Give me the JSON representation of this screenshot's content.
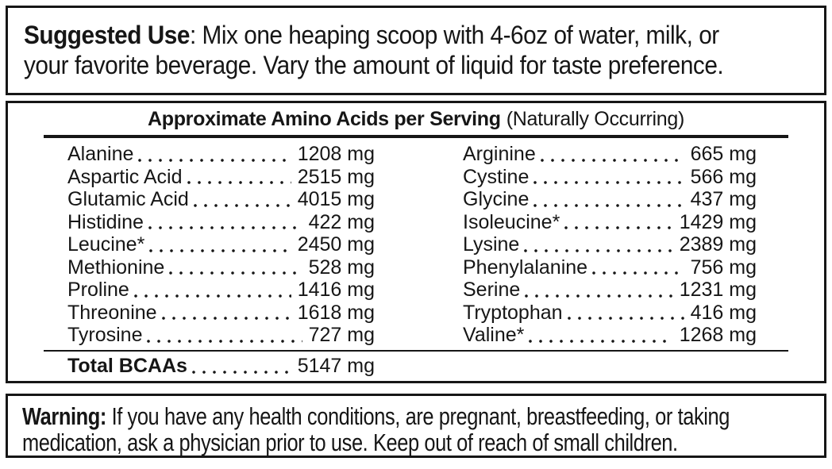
{
  "colors": {
    "text": "#161616",
    "border": "#161616",
    "background": "#ffffff"
  },
  "suggested_use": {
    "label": "Suggested Use",
    "text": ": Mix one heaping scoop with 4-6oz of water, milk, or\nyour favorite beverage. Vary the amount of liquid for taste preference."
  },
  "amino_table": {
    "title": "Approximate Amino Acids per Serving",
    "title_note": "(Naturally Occurring)",
    "left_column": [
      {
        "name": "Alanine",
        "value": "1208 mg"
      },
      {
        "name": "Aspartic Acid",
        "value": "2515 mg"
      },
      {
        "name": "Glutamic Acid",
        "value": "4015 mg"
      },
      {
        "name": "Histidine",
        "value": "422 mg"
      },
      {
        "name": "Leucine*",
        "value": "2450 mg"
      },
      {
        "name": "Methionine",
        "value": "528 mg"
      },
      {
        "name": "Proline",
        "value": "1416 mg"
      },
      {
        "name": "Threonine",
        "value": "1618 mg"
      },
      {
        "name": "Tyrosine",
        "value": "727 mg"
      }
    ],
    "right_column": [
      {
        "name": "Arginine",
        "value": "665 mg"
      },
      {
        "name": "Cystine",
        "value": "566 mg"
      },
      {
        "name": "Glycine",
        "value": "437 mg"
      },
      {
        "name": "Isoleucine*",
        "value": "1429 mg"
      },
      {
        "name": "Lysine",
        "value": "2389 mg"
      },
      {
        "name": "Phenylalanine",
        "value": "756 mg"
      },
      {
        "name": "Serine",
        "value": "1231 mg"
      },
      {
        "name": "Tryptophan",
        "value": "416 mg"
      },
      {
        "name": "Valine*",
        "value": "1268 mg"
      }
    ],
    "total": {
      "label": "Total BCAAs",
      "value": "5147 mg"
    }
  },
  "warning": {
    "label": "Warning:",
    "text": " If you have any health conditions, are pregnant, breastfeeding, or taking\nmedication, ask a physician prior to use. Keep out of reach of small children."
  }
}
